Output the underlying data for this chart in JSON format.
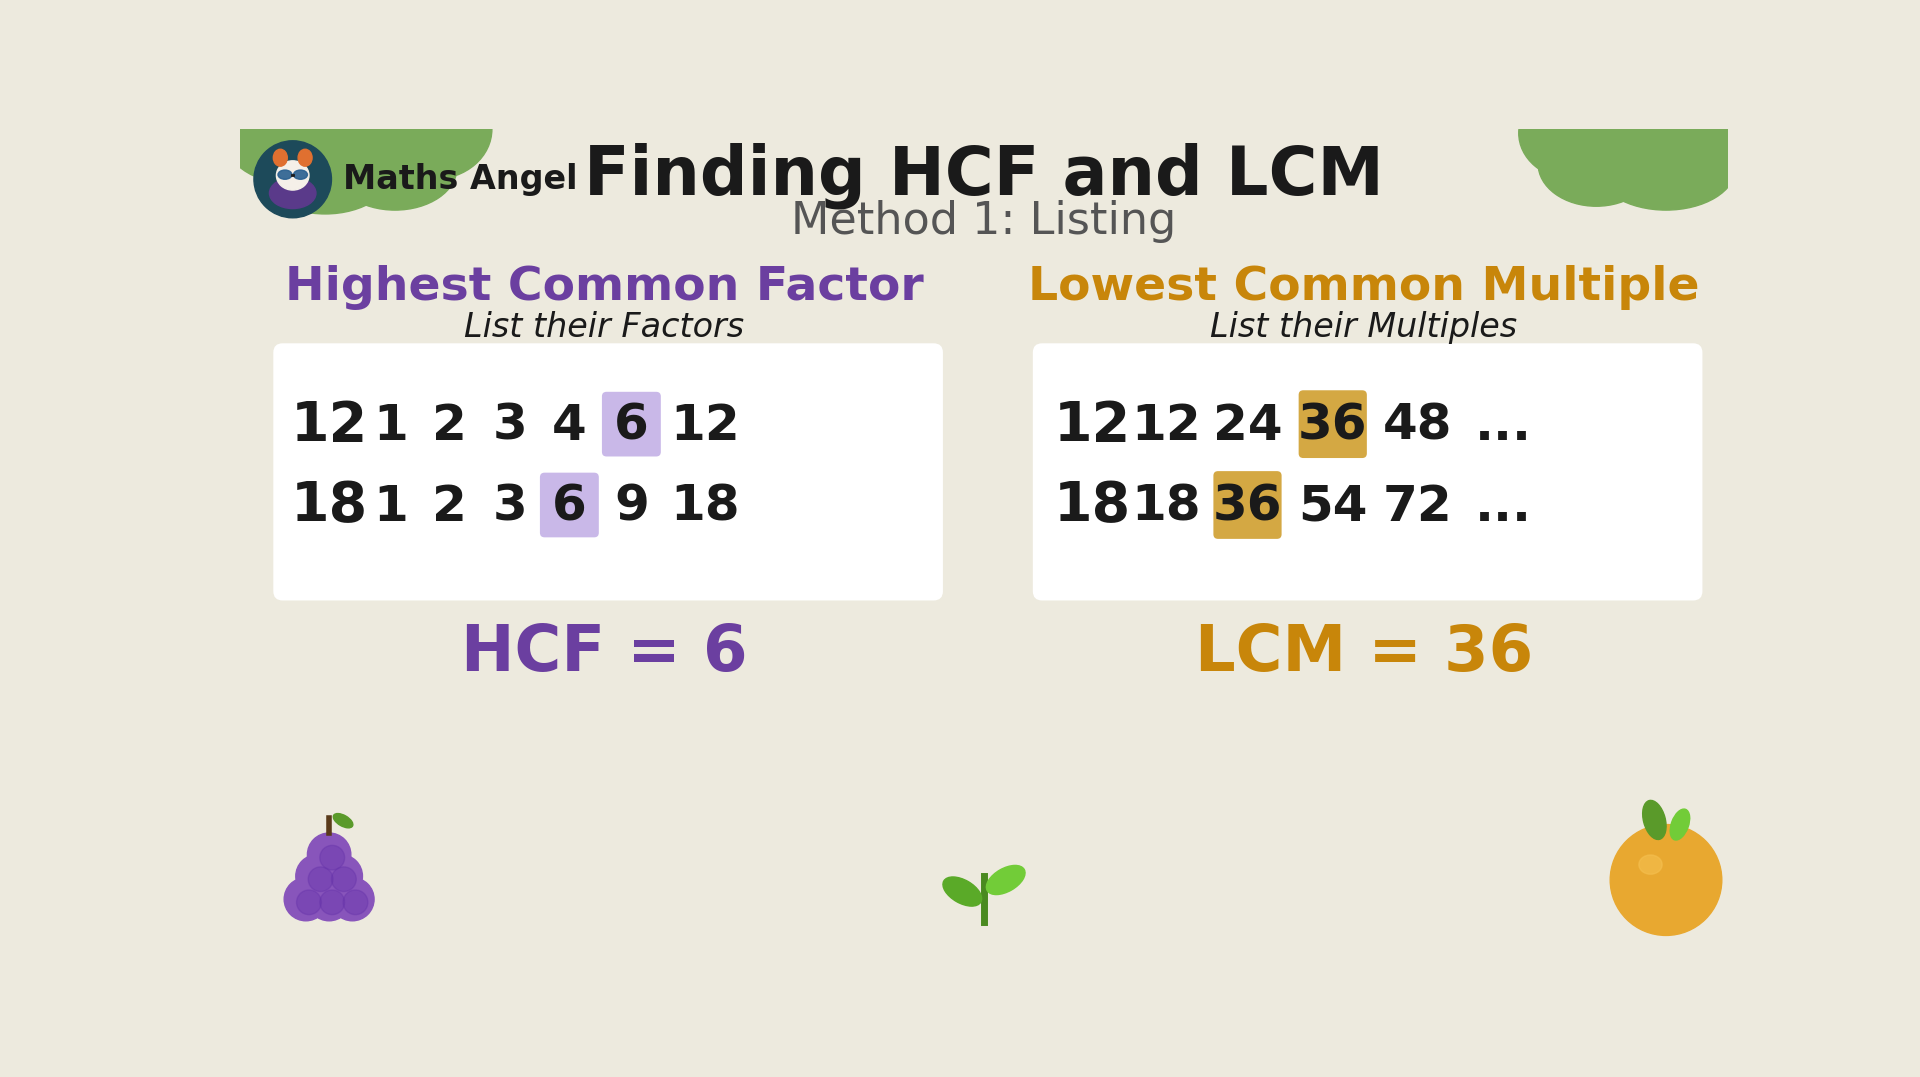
{
  "title": "Finding HCF and LCM",
  "subtitle": "Method 1: Listing",
  "bg_color": "#edeade",
  "hcf_title": "Highest Common Factor",
  "hcf_subtitle": "List their Factors",
  "lcm_title": "Lowest Common Multiple",
  "lcm_subtitle": "List their Multiples",
  "hcf_title_color": "#6b3fa0",
  "lcm_title_color": "#c8860a",
  "hcf_row1_label": "12",
  "hcf_row1_values": [
    "1",
    "2",
    "3",
    "4",
    "6",
    "12"
  ],
  "hcf_row1_highlight": [
    4
  ],
  "hcf_row2_label": "18",
  "hcf_row2_values": [
    "1",
    "2",
    "3",
    "6",
    "9",
    "18"
  ],
  "hcf_row2_highlight": [
    3
  ],
  "lcm_row1_label": "12",
  "lcm_row1_values": [
    "12",
    "24",
    "36",
    "48",
    "..."
  ],
  "lcm_row1_highlight": [
    2
  ],
  "lcm_row2_label": "18",
  "lcm_row2_values": [
    "18",
    "36",
    "54",
    "72",
    "..."
  ],
  "lcm_row2_highlight": [
    1
  ],
  "hcf_highlight_color": "#c9b8e8",
  "lcm_highlight_color": "#d4a843",
  "hcf_result": "HCF = 6",
  "lcm_result": "LCM = 36",
  "hcf_result_color": "#6b3fa0",
  "lcm_result_color": "#c8860a",
  "brand_name": "Maths Angel",
  "box_bg": "#ffffff",
  "text_color": "#1a1a1a",
  "title_fontsize": 48,
  "subtitle_fontsize": 32,
  "section_title_fontsize": 34,
  "section_subtitle_fontsize": 24,
  "number_fontsize": 30,
  "result_fontsize": 42,
  "brand_fontsize": 24
}
